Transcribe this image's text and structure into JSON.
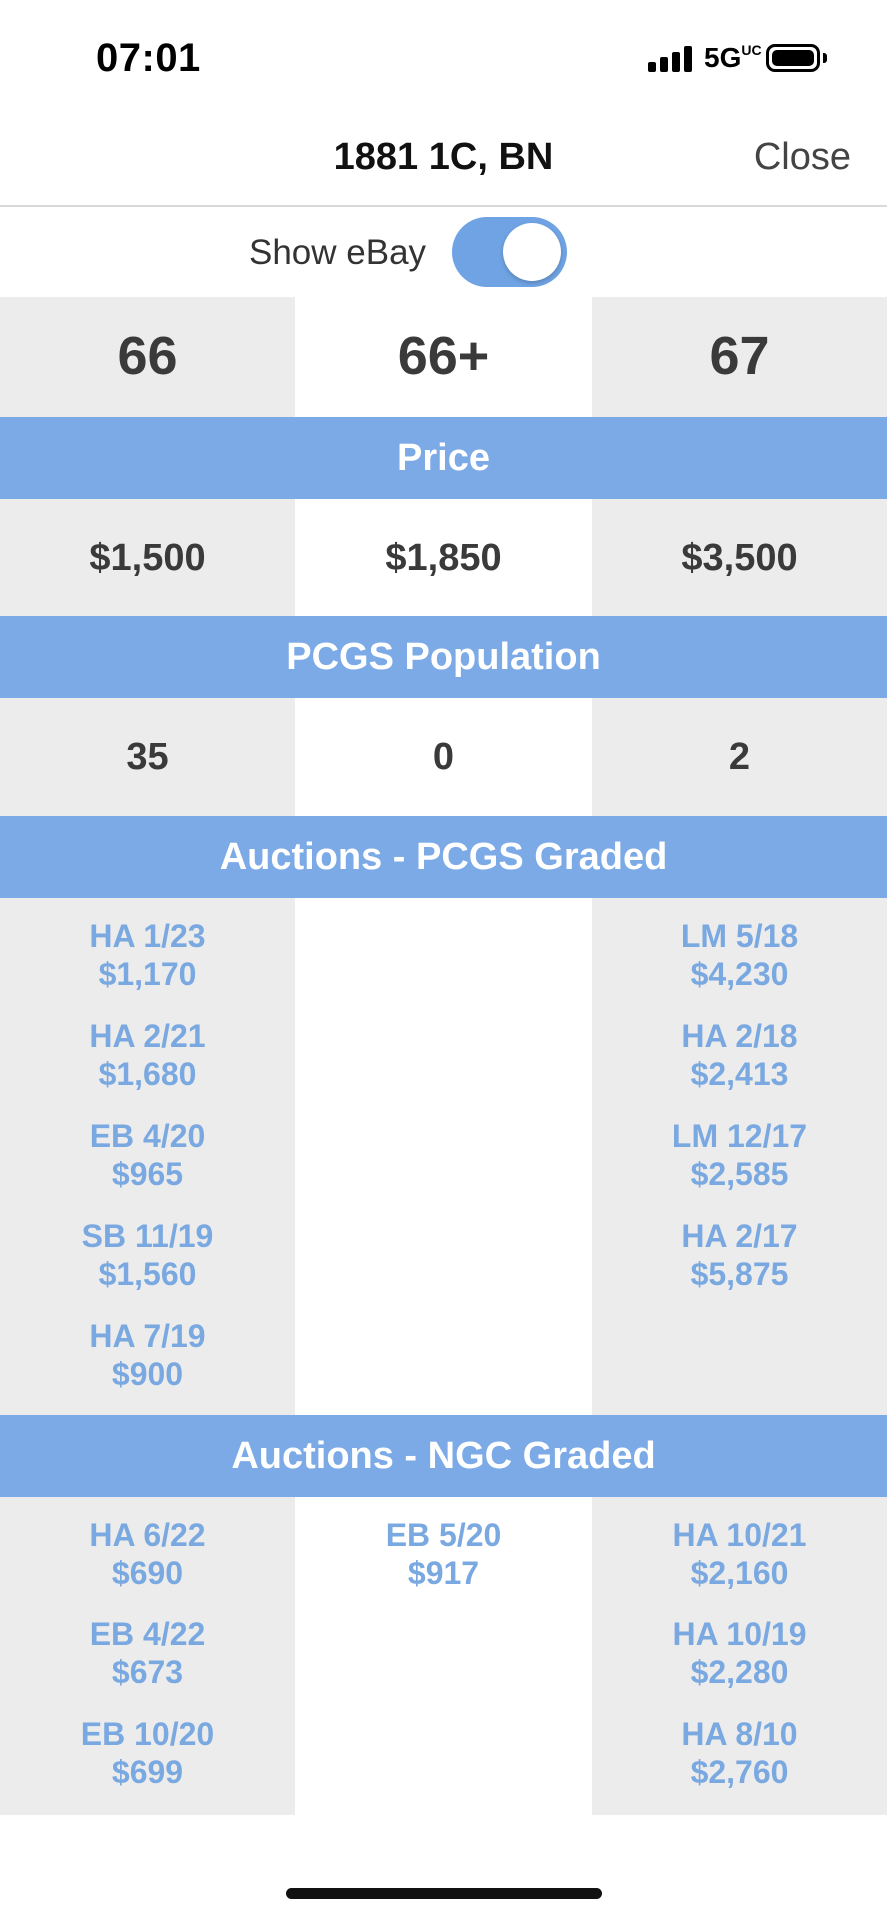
{
  "status_bar": {
    "time": "07:01",
    "network": "5G",
    "network_sup": "UC"
  },
  "nav": {
    "title": "1881 1C, BN",
    "close_label": "Close"
  },
  "toggle": {
    "label": "Show eBay",
    "on": true
  },
  "grades": [
    "66",
    "66+",
    "67"
  ],
  "sections": {
    "price": "Price",
    "population": "PCGS Population",
    "auctions_pcgs": "Auctions - PCGS Graded",
    "auctions_ngc": "Auctions - NGC Graded"
  },
  "prices": [
    "$1,500",
    "$1,850",
    "$3,500"
  ],
  "population": [
    "35",
    "0",
    "2"
  ],
  "auctions_pcgs": [
    [
      {
        "house_date": "HA 1/23",
        "price": "$1,170"
      },
      {
        "house_date": "HA 2/21",
        "price": "$1,680"
      },
      {
        "house_date": "EB 4/20",
        "price": "$965"
      },
      {
        "house_date": "SB 11/19",
        "price": "$1,560"
      },
      {
        "house_date": "HA 7/19",
        "price": "$900"
      }
    ],
    [],
    [
      {
        "house_date": "LM 5/18",
        "price": "$4,230"
      },
      {
        "house_date": "HA 2/18",
        "price": "$2,413"
      },
      {
        "house_date": "LM 12/17",
        "price": "$2,585"
      },
      {
        "house_date": "HA 2/17",
        "price": "$5,875"
      }
    ]
  ],
  "auctions_ngc": [
    [
      {
        "house_date": "HA 6/22",
        "price": "$690"
      },
      {
        "house_date": "EB 4/22",
        "price": "$673"
      },
      {
        "house_date": "EB 10/20",
        "price": "$699"
      }
    ],
    [
      {
        "house_date": "EB 5/20",
        "price": "$917"
      }
    ],
    [
      {
        "house_date": "HA 10/21",
        "price": "$2,160"
      },
      {
        "house_date": "HA 10/19",
        "price": "$2,280"
      },
      {
        "house_date": "HA 8/10",
        "price": "$2,760"
      }
    ]
  ],
  "colors": {
    "band": "#7baae6",
    "link": "#7aa8e0",
    "shaded_col": "#ececec",
    "toggle_on": "#6fa3e3"
  }
}
